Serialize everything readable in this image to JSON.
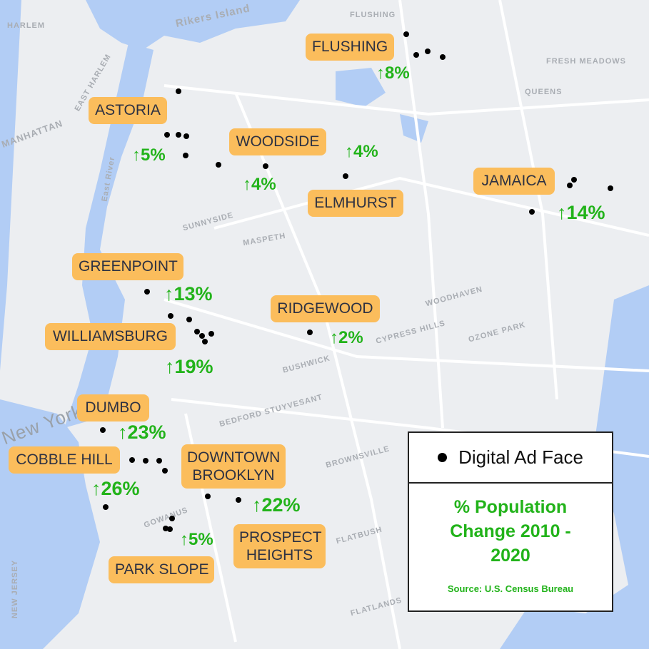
{
  "basemap": {
    "water_color": "#b2cdf5",
    "land_color": "#eceef1",
    "labels": [
      "Rikers Island",
      "QUEENS",
      "MANHATTAN",
      "New York",
      "FLUSHING",
      "FRESH MEADOWS",
      "HARLEM",
      "EAST HARLEM",
      "SUNNYSIDE",
      "MASPETH",
      "BUSHWICK",
      "BROWNSVILLE",
      "FLATBUSH",
      "FLATLANDS",
      "OZONE PARK",
      "WOODHAVEN",
      "CYPRESS HILLS",
      "NEW JERSEY",
      "BEDFORD STUYVESANT",
      "GOWANUS",
      "East River"
    ]
  },
  "colors": {
    "label_bg": "#fbbd5c",
    "change_text": "#22b31a",
    "ad_face_dot": "#000000"
  },
  "neighborhoods": [
    {
      "name": "FLUSHING",
      "change": "↑8%"
    },
    {
      "name": "ASTORIA",
      "change": "↑5%"
    },
    {
      "name": "WOODSIDE",
      "change": "↑4%"
    },
    {
      "name": "ELMHURST",
      "change": "↑4%"
    },
    {
      "name": "JAMAICA",
      "change": "↑14%"
    },
    {
      "name": "GREENPOINT",
      "change": "↑13%"
    },
    {
      "name": "RIDGEWOOD",
      "change": "↑2%"
    },
    {
      "name": "WILLIAMSBURG",
      "change": "↑19%"
    },
    {
      "name": "DUMBO",
      "change": "↑23%"
    },
    {
      "name": "COBBLE HILL",
      "change": "↑26%"
    },
    {
      "name": "DOWNTOWN BROOKLYN",
      "change": "↑22%"
    },
    {
      "name": "PROSPECT HEIGHTS",
      "change": "↑5%"
    },
    {
      "name": "PARK SLOPE",
      "change": null
    }
  ],
  "legend": {
    "marker_label": "Digital Ad Face",
    "title": "% Population Change 2010 - 2020",
    "source": "Source: U.S. Census Bureau"
  }
}
